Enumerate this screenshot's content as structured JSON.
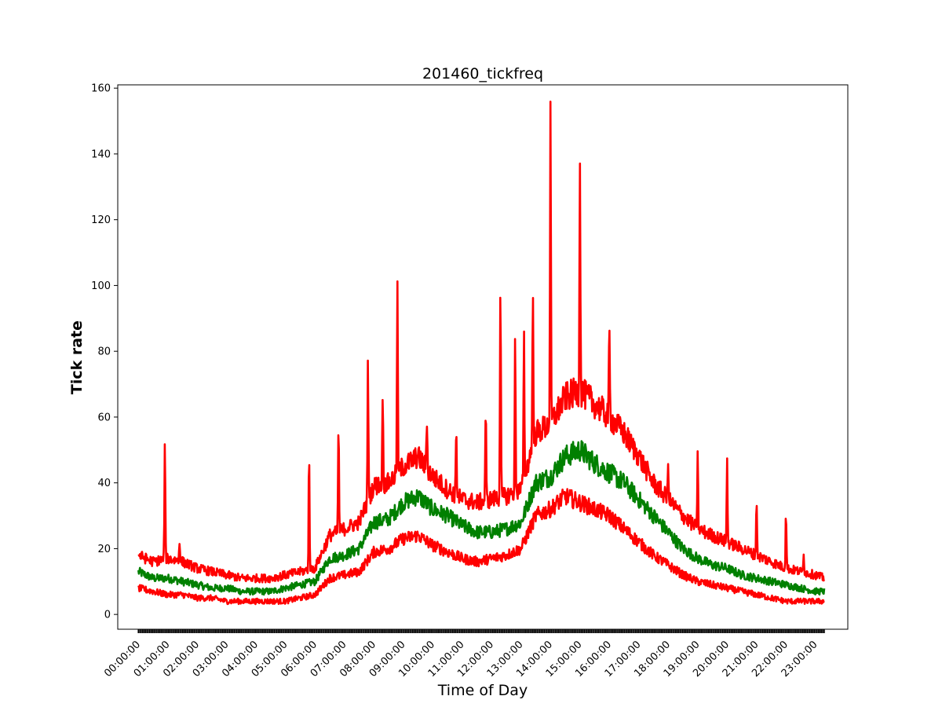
{
  "chart_data": {
    "type": "line",
    "title": "201460_tickfreq",
    "xlabel": "Time of Day",
    "ylabel": "Tick rate",
    "xlim": [
      -0.7,
      24.1
    ],
    "ylim": [
      -4.5,
      161
    ],
    "yticks": [
      0,
      20,
      40,
      60,
      80,
      100,
      120,
      140,
      160
    ],
    "xticks": [
      "00:00:00",
      "01:00:00",
      "02:00:00",
      "03:00:00",
      "04:00:00",
      "05:00:00",
      "06:00:00",
      "07:00:00",
      "08:00:00",
      "09:00:00",
      "10:00:00",
      "11:00:00",
      "12:00:00",
      "13:00:00",
      "14:00:00",
      "15:00:00",
      "16:00:00",
      "17:00:00",
      "18:00:00",
      "19:00:00",
      "20:00:00",
      "21:00:00",
      "22:00:00",
      "23:00:00"
    ],
    "grid": false,
    "colors": {
      "upper": "#ff0000",
      "mean": "#008000",
      "lower": "#ff0000",
      "minor_ticks": "#000000"
    },
    "x": [
      0,
      0.5,
      1,
      1.5,
      2,
      2.5,
      3,
      3.5,
      4,
      4.5,
      5,
      5.5,
      6,
      6.5,
      7,
      7.5,
      8,
      8.5,
      9,
      9.5,
      10,
      10.5,
      11,
      11.5,
      12,
      12.5,
      13,
      13.5,
      14,
      14.5,
      15,
      15.5,
      16,
      16.5,
      17,
      17.5,
      18,
      18.5,
      19,
      19.5,
      20,
      20.5,
      21,
      21.5,
      22,
      22.5,
      23,
      23.3
    ],
    "series": [
      {
        "values": [
          18,
          16,
          17,
          16,
          14,
          13,
          12,
          11,
          11,
          11,
          12,
          13,
          14,
          24,
          26,
          28,
          39,
          40,
          45,
          48,
          42,
          38,
          35,
          34,
          35,
          36,
          38,
          55,
          58,
          66,
          68,
          64,
          60,
          55,
          48,
          40,
          35,
          30,
          26,
          24,
          22,
          20,
          18,
          16,
          14,
          13,
          12,
          11
        ],
        "spikes": [
          [
            0.9,
            52
          ],
          [
            1.4,
            23
          ],
          [
            5.8,
            49
          ],
          [
            6.8,
            58
          ],
          [
            7.8,
            76
          ],
          [
            8.3,
            68
          ],
          [
            8.8,
            101
          ],
          [
            9.8,
            60
          ],
          [
            10.8,
            58
          ],
          [
            11.8,
            63
          ],
          [
            12.3,
            102
          ],
          [
            12.8,
            84
          ],
          [
            13.1,
            84
          ],
          [
            13.4,
            98
          ],
          [
            14,
            153
          ],
          [
            15,
            140
          ],
          [
            16,
            86
          ],
          [
            17,
            49
          ],
          [
            18,
            46
          ],
          [
            19,
            48
          ],
          [
            20,
            47
          ],
          [
            21,
            35
          ],
          [
            22,
            32
          ],
          [
            22.6,
            19
          ]
        ]
      },
      {
        "values": [
          13,
          11,
          11,
          10,
          9,
          8,
          8,
          7,
          7,
          7,
          8,
          9,
          10,
          17,
          18,
          20,
          28,
          29,
          34,
          36,
          32,
          30,
          27,
          25,
          25,
          26,
          28,
          40,
          42,
          48,
          50,
          46,
          43,
          40,
          35,
          30,
          25,
          20,
          17,
          15,
          14,
          12,
          11,
          10,
          9,
          8,
          7,
          7
        ],
        "spikes": []
      },
      {
        "values": [
          8,
          7,
          6,
          6,
          5,
          5,
          4,
          4,
          4,
          4,
          4,
          5,
          6,
          11,
          12,
          13,
          19,
          20,
          23,
          24,
          21,
          19,
          17,
          16,
          17,
          18,
          20,
          30,
          32,
          36,
          34,
          32,
          30,
          26,
          22,
          18,
          15,
          12,
          10,
          9,
          8,
          7,
          6,
          5,
          4,
          4,
          4,
          4
        ],
        "spikes": []
      }
    ]
  }
}
